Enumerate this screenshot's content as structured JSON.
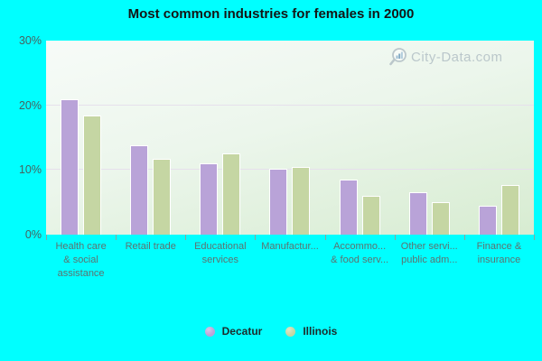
{
  "title": "Most common industries for females in 2000",
  "watermark": {
    "text": "City-Data.com",
    "icon": "magnifier-chart-icon"
  },
  "colors": {
    "background": "#00ffff",
    "decatur": "#b9a3d8",
    "illinois": "#c5d6a3",
    "grid": "#e6e0ec",
    "plot_gradient_top": "#f7fbf8",
    "plot_gradient_bottom": "#d7ecd1"
  },
  "chart_data": {
    "type": "bar",
    "title": "Most common industries for females in 2000",
    "categories": [
      "Health care & social assistance",
      "Retail trade",
      "Educational services",
      "Manufactur...",
      "Accommo... & food serv...",
      "Other servi... public adm...",
      "Finance & insurance"
    ],
    "category_label_lines": [
      [
        "Health care",
        "& social",
        "assistance"
      ],
      [
        "Retail trade"
      ],
      [
        "Educational",
        "services"
      ],
      [
        "Manufactur..."
      ],
      [
        "Accommo...",
        "& food serv..."
      ],
      [
        "Other servi...",
        "public adm..."
      ],
      [
        "Finance &",
        "insurance"
      ]
    ],
    "series": [
      {
        "name": "Decatur",
        "color": "#b9a3d8",
        "values": [
          21.0,
          13.8,
          11.0,
          10.2,
          8.5,
          6.5,
          4.5
        ]
      },
      {
        "name": "Illinois",
        "color": "#c5d6a3",
        "values": [
          18.4,
          11.7,
          12.5,
          10.4,
          6.0,
          5.0,
          7.7
        ]
      }
    ],
    "ylim": [
      0,
      30
    ],
    "yticks": [
      {
        "value": 0,
        "label": "0%"
      },
      {
        "value": 10,
        "label": "10%"
      },
      {
        "value": 20,
        "label": "20%"
      },
      {
        "value": 30,
        "label": "30%"
      }
    ],
    "grid": "horizontal",
    "legend_position": "bottom"
  }
}
